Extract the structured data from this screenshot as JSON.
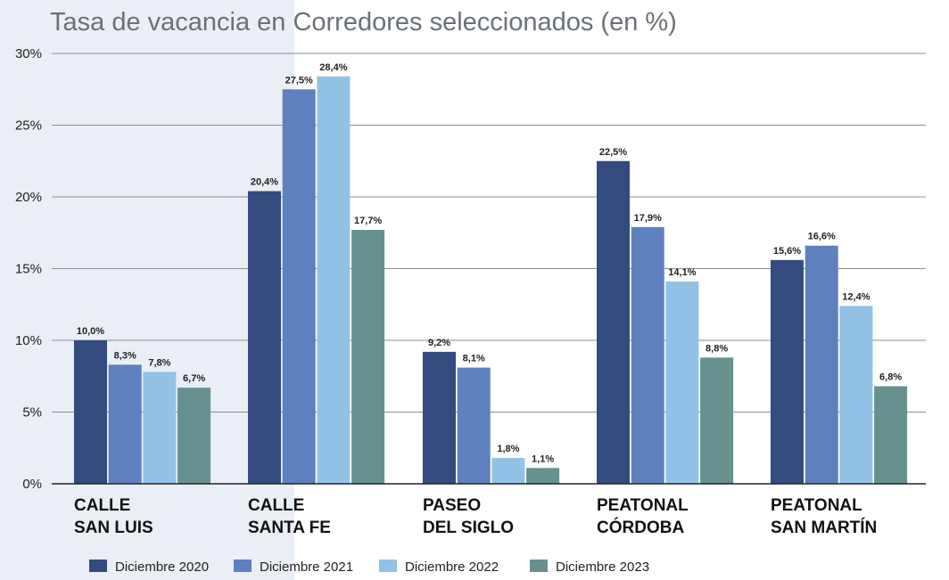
{
  "chart_data": {
    "type": "bar",
    "title": "Tasa de vacancia en Corredores seleccionados (en %)",
    "categories": [
      [
        "CALLE",
        "SAN LUIS"
      ],
      [
        "CALLE",
        "SANTA FE"
      ],
      [
        "PASEO",
        "DEL SIGLO"
      ],
      [
        "PEATONAL",
        "CÓRDOBA"
      ],
      [
        "PEATONAL",
        "SAN MARTÍN"
      ]
    ],
    "series": [
      {
        "name": "Diciembre 2020",
        "color": "#334b7f",
        "values": [
          10.0,
          20.4,
          9.2,
          22.5,
          15.6
        ],
        "labels": [
          "10,0%",
          "20,4%",
          "9,2%",
          "22,5%",
          "15,6%"
        ]
      },
      {
        "name": "Diciembre 2021",
        "color": "#5e80bf",
        "values": [
          8.3,
          27.5,
          8.1,
          17.9,
          16.6
        ],
        "labels": [
          "8,3%",
          "27,5%",
          "8,1%",
          "17,9%",
          "16,6%"
        ]
      },
      {
        "name": "Diciembre 2022",
        "color": "#92c2e6",
        "values": [
          7.8,
          28.4,
          1.8,
          14.1,
          12.4
        ],
        "labels": [
          "7,8%",
          "28,4%",
          "1,8%",
          "14,1%",
          "12,4%"
        ]
      },
      {
        "name": "Diciembre 2023",
        "color": "#66918e",
        "values": [
          6.7,
          17.7,
          1.1,
          8.8,
          6.8
        ],
        "labels": [
          "6,7%",
          "17,7%",
          "1,1%",
          "8,8%",
          "6,8%"
        ]
      }
    ],
    "ylim": [
      0,
      30
    ],
    "yticks": [
      "0%",
      "5%",
      "10%",
      "15%",
      "20%",
      "25%",
      "30%"
    ],
    "grid": true,
    "legend_position": "bottom"
  }
}
